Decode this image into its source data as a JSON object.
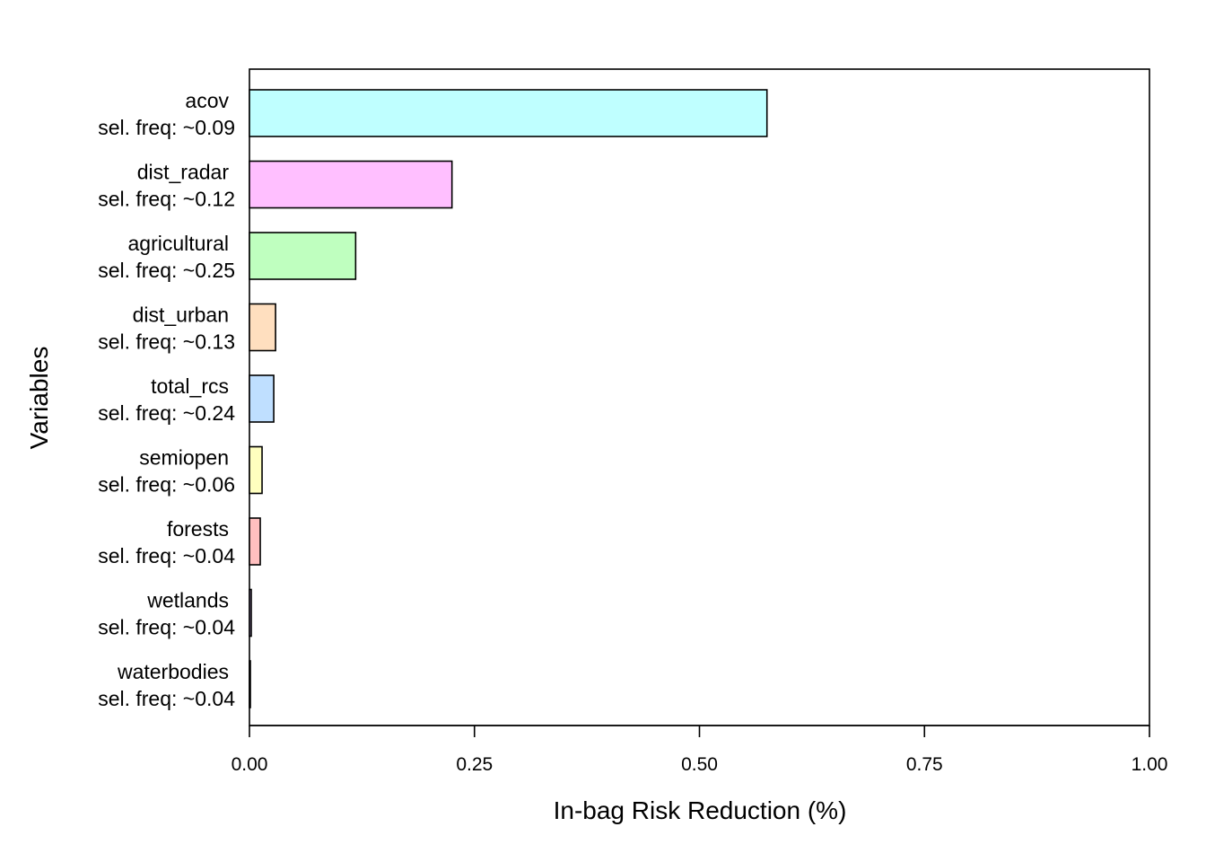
{
  "chart_data": {
    "type": "bar",
    "orientation": "horizontal",
    "title": "",
    "xlabel": "In-bag Risk Reduction (%)",
    "ylabel": "Variables",
    "xlim": [
      0,
      1
    ],
    "xticks": [
      "0.00",
      "0.25",
      "0.50",
      "0.75",
      "1.00"
    ],
    "xtick_values": [
      0,
      0.25,
      0.5,
      0.75,
      1.0
    ],
    "grid": false,
    "legend": "none",
    "bars": [
      {
        "label": "acov",
        "sel_freq": "sel. freq: ~0.09",
        "value": 0.575,
        "color": "#bfffff"
      },
      {
        "label": "dist_radar",
        "sel_freq": "sel. freq: ~0.12",
        "value": 0.225,
        "color": "#ffbfff"
      },
      {
        "label": "agricultural",
        "sel_freq": "sel. freq: ~0.25",
        "value": 0.118,
        "color": "#bfffbf"
      },
      {
        "label": "dist_urban",
        "sel_freq": "sel. freq: ~0.13",
        "value": 0.029,
        "color": "#ffdfbf"
      },
      {
        "label": "total_rcs",
        "sel_freq": "sel. freq: ~0.24",
        "value": 0.027,
        "color": "#bfdfff"
      },
      {
        "label": "semiopen",
        "sel_freq": "sel. freq: ~0.06",
        "value": 0.014,
        "color": "#ffffbf"
      },
      {
        "label": "forests",
        "sel_freq": "sel. freq: ~0.04",
        "value": 0.012,
        "color": "#ffbfbf"
      },
      {
        "label": "wetlands",
        "sel_freq": "sel. freq: ~0.04",
        "value": 0.002,
        "color": "#dfbfff"
      },
      {
        "label": "waterbodies",
        "sel_freq": "sel. freq: ~0.04",
        "value": 0.001,
        "color": "#bfffdf"
      }
    ]
  }
}
